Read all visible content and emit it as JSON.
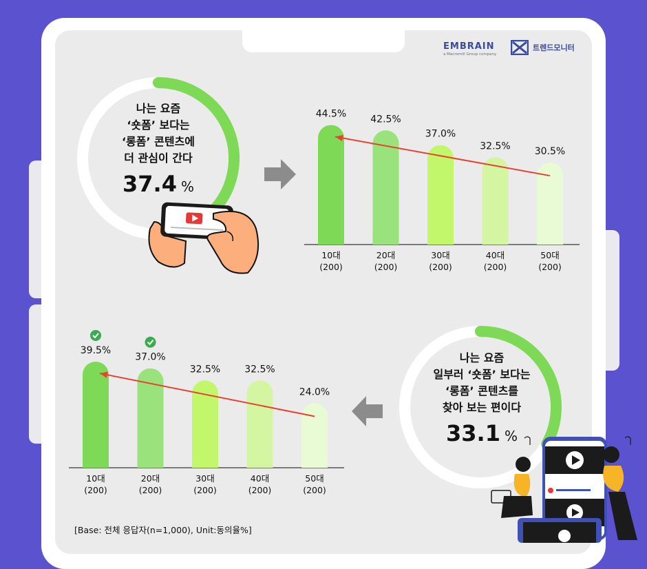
{
  "brand": {
    "embrain_name": "EMBRAIN",
    "embrain_sub": "a Macromill Group company",
    "trend_name": "트렌드모니터"
  },
  "stat1": {
    "question": "나는 요즘\n‘숏폼’ 보다는\n‘롱폼’ 콘텐츠에\n더 관심이 간다",
    "value": "37.4",
    "unit": "%",
    "fraction": 0.374
  },
  "stat2": {
    "question": "나는 요즘\n일부러 ‘숏폼’ 보다는\n‘롱폼’ 콘텐츠를\n찾아 보는 편이다",
    "value": "33.1",
    "unit": "%",
    "fraction": 0.331
  },
  "base_note": "[Base: 전체 응답자(n=1,000), Unit:동의율%]",
  "colors": [
    "#7ed957",
    "#99e27c",
    "#c2f76c",
    "#d4f6a3",
    "#e8fbd4"
  ],
  "chart_data": [
    {
      "type": "bar",
      "categories": [
        "10대",
        "20대",
        "30대",
        "40대",
        "50대"
      ],
      "sublabels": [
        "(200)",
        "(200)",
        "(200)",
        "(200)",
        "(200)"
      ],
      "values": [
        44.5,
        42.5,
        37.0,
        32.5,
        30.5
      ],
      "labels": [
        "44.5%",
        "42.5%",
        "37.0%",
        "32.5%",
        "30.5%"
      ],
      "checked": [
        false,
        false,
        false,
        false,
        false
      ],
      "trend_arrow": "decreasing"
    },
    {
      "type": "bar",
      "categories": [
        "10대",
        "20대",
        "30대",
        "40대",
        "50대"
      ],
      "sublabels": [
        "(200)",
        "(200)",
        "(200)",
        "(200)",
        "(200)"
      ],
      "values": [
        39.5,
        37.0,
        32.5,
        32.5,
        24.0
      ],
      "labels": [
        "39.5%",
        "37.0%",
        "32.5%",
        "32.5%",
        "24.0%"
      ],
      "checked": [
        true,
        true,
        false,
        false,
        false
      ],
      "trend_arrow": "decreasing"
    }
  ]
}
